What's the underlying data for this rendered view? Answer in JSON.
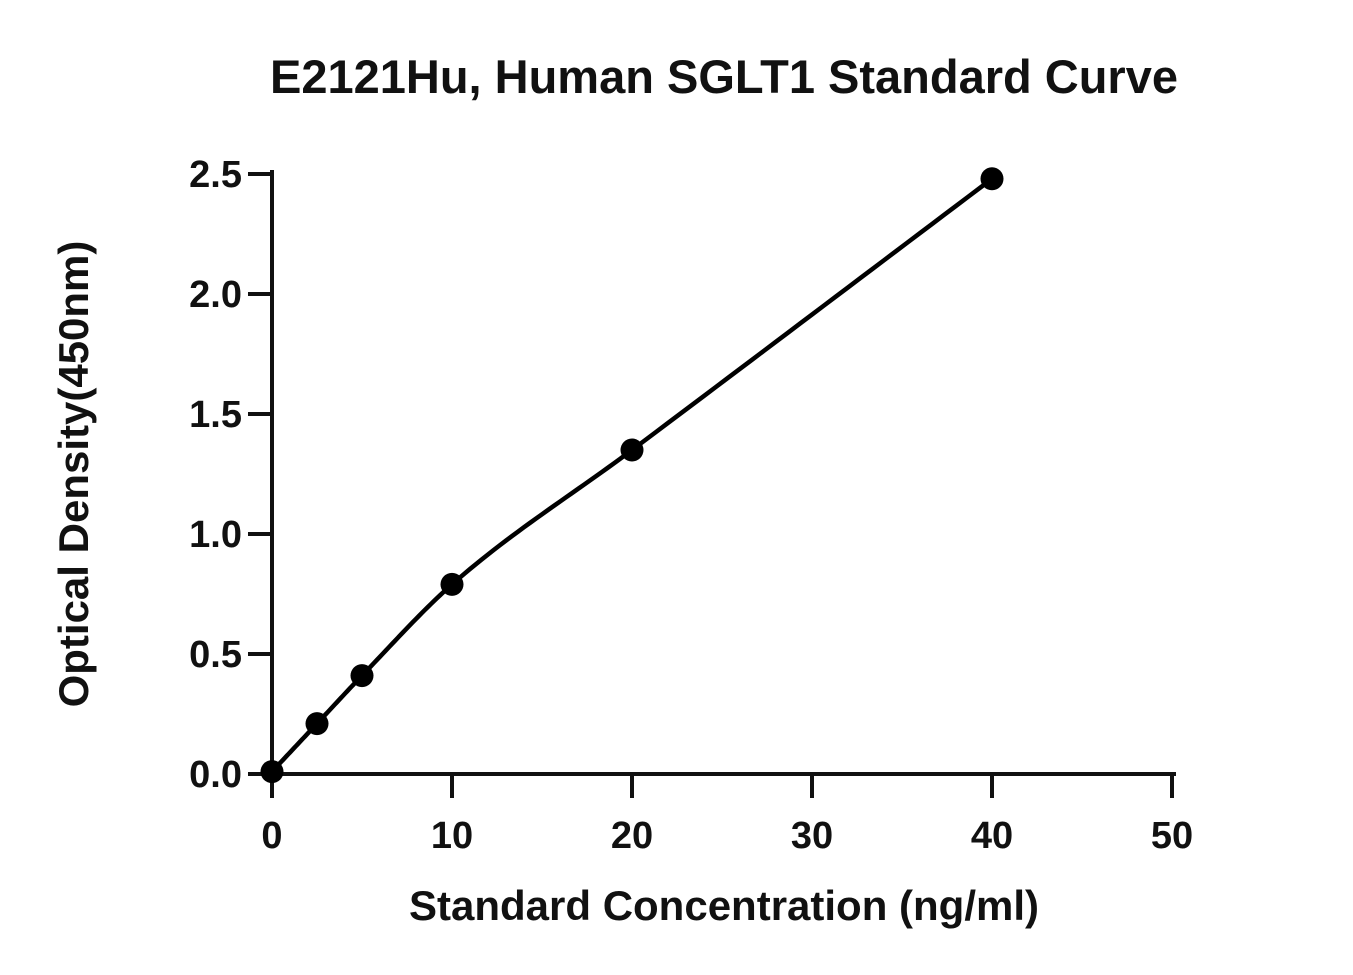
{
  "chart_data": {
    "type": "scatter",
    "title": "E2121Hu, Human SGLT1 Standard Curve",
    "xlabel": "Standard Concentration (ng/ml)",
    "ylabel": "Optical Density(450nm)",
    "xlim": [
      0,
      50
    ],
    "ylim": [
      0,
      2.5
    ],
    "xticks": [
      "0",
      "10",
      "20",
      "30",
      "40",
      "50"
    ],
    "yticks": [
      "0.0",
      "0.5",
      "1.0",
      "1.5",
      "2.0",
      "2.5"
    ],
    "grid": false,
    "fit_line": true,
    "series": [
      {
        "x": [
          0,
          2.5,
          5,
          10,
          20,
          40
        ],
        "values": [
          0.01,
          0.21,
          0.41,
          0.79,
          1.35,
          2.48
        ]
      }
    ],
    "colors": {
      "marker": "#000000",
      "line": "#000000"
    }
  }
}
